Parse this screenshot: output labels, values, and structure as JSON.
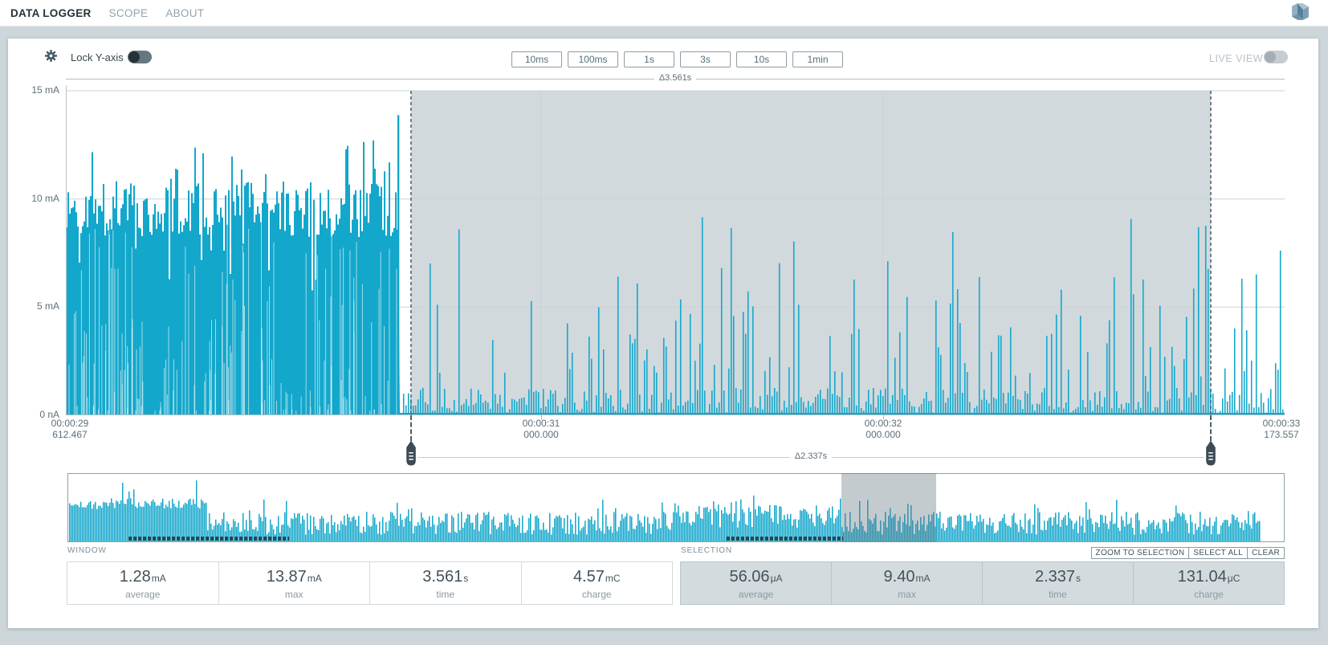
{
  "nav": {
    "items": [
      {
        "label": "DATA LOGGER"
      },
      {
        "label": "SCOPE"
      },
      {
        "label": "ABOUT"
      }
    ]
  },
  "toolbar": {
    "lock_y_label": "Lock Y-axis",
    "live_view_label": "LIVE VIEW",
    "range_buttons": [
      "10ms",
      "100ms",
      "1s",
      "3s",
      "10s",
      "1min"
    ]
  },
  "chart_data": {
    "type": "area",
    "unit": "mA",
    "ylim": [
      0,
      15
    ],
    "grid": true,
    "y_ticks": [
      {
        "label": "15 mA",
        "value": 15
      },
      {
        "label": "10 mA",
        "value": 10
      },
      {
        "label": "5 mA",
        "value": 5
      },
      {
        "label": "0 nA",
        "value": 0
      }
    ],
    "x_ticks": [
      {
        "time": "00:00:29",
        "ms": "612.467",
        "frac": 0.003
      },
      {
        "time": "00:00:31",
        "ms": "000.000",
        "frac": 0.3897
      },
      {
        "time": "00:00:32",
        "ms": "000.000",
        "frac": 0.6705
      },
      {
        "time": "00:00:33",
        "ms": "173.557",
        "frac": 0.997
      }
    ],
    "window_delta": "Δ3.561s",
    "selection_delta": "Δ2.337s",
    "window": {
      "start": "00:00:29 612.467",
      "end": "00:00:33 173.557",
      "duration_s": 3.561,
      "average_mA": 1.28,
      "max_mA": 13.87,
      "charge_mC": 4.57
    },
    "selection": {
      "frac_start": 0.2832,
      "frac_end": 0.9394,
      "duration_s": 2.337,
      "average_uA": 56.06,
      "max_mA": 9.4,
      "charge_uC": 131.04
    },
    "regions": [
      {
        "name": "dense-activity",
        "frac_start": 0,
        "frac_end": 0.274,
        "base_range_mA": [
          6.5,
          10.8
        ],
        "peak_mA": 13.87
      },
      {
        "name": "sparse-pulses",
        "frac_start": 0.274,
        "frac_end": 1,
        "base_range_mA": [
          0.1,
          1.3
        ],
        "spike_range_mA": [
          1.8,
          9.4
        ]
      }
    ],
    "max_spike": {
      "frac": 0.273,
      "value_mA": 13.87
    },
    "seed": 1337,
    "minimap": {
      "dense_frac_end": 0.113,
      "selection_frac_start": 0.6365,
      "selection_frac_end": 0.7144,
      "data_frac_end": 0.98
    }
  },
  "stats": {
    "window": {
      "label": "WINDOW",
      "cells": [
        {
          "value": "1.28",
          "unit": "mA",
          "label": "average"
        },
        {
          "value": "13.87",
          "unit": "mA",
          "label": "max"
        },
        {
          "value": "3.561",
          "unit": "s",
          "label": "time"
        },
        {
          "value": "4.57",
          "unit": "mC",
          "label": "charge"
        }
      ]
    },
    "selection": {
      "label": "SELECTION",
      "cells": [
        {
          "value": "56.06",
          "unit": "μA",
          "label": "average"
        },
        {
          "value": "9.40",
          "unit": "mA",
          "label": "max"
        },
        {
          "value": "2.337",
          "unit": "s",
          "label": "time"
        },
        {
          "value": "131.04",
          "unit": "μC",
          "label": "charge"
        }
      ],
      "buttons": [
        "ZOOM TO SELECTION",
        "SELECT ALL",
        "CLEAR"
      ]
    }
  },
  "colors": {
    "accent": "#13a7cb",
    "selection_bg": "#d2d9dd",
    "handle": "#3c4b55",
    "grid": "#c9d3d8",
    "muted_text": "#5d6f79"
  }
}
